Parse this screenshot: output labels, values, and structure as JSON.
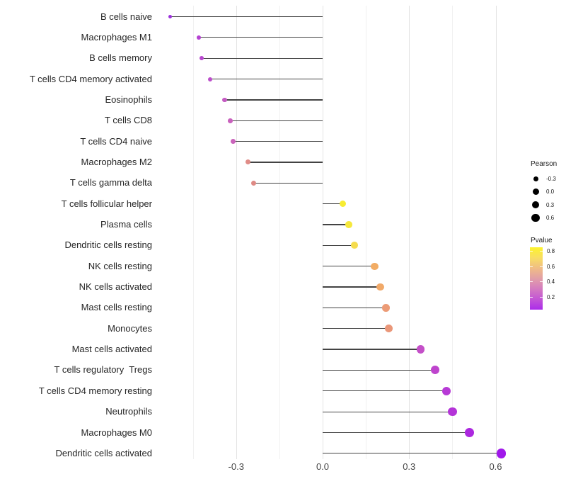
{
  "figure": {
    "background": "#ffffff",
    "stem_color": "#434343",
    "grid_major_color": "#e3e3e3",
    "grid_minor_color": "#f1f1f1"
  },
  "chart_data": {
    "type": "scatter",
    "variant": "horizontal-lollipop",
    "title": "",
    "xlabel": "",
    "ylabel": "",
    "baseline": 0.0,
    "x_axis": {
      "ticks": [
        -0.3,
        0.0,
        0.3,
        0.6
      ],
      "tick_labels": [
        "-0.3",
        "0.0",
        "0.3",
        "0.6"
      ],
      "minor_ticks": [
        -0.45,
        -0.15,
        0.15,
        0.45
      ],
      "range": [
        -0.575,
        0.655
      ],
      "grid": true
    },
    "points": [
      {
        "label": "B cells naive",
        "pearson": -0.53,
        "color": "#9b30db"
      },
      {
        "label": "Macrophages M1",
        "pearson": -0.43,
        "color": "#b542d2"
      },
      {
        "label": "B cells memory",
        "pearson": -0.42,
        "color": "#b847cf"
      },
      {
        "label": "T cells CD4 memory activated",
        "pearson": -0.39,
        "color": "#bc4ecb"
      },
      {
        "label": "Eosinophils",
        "pearson": -0.34,
        "color": "#c45bc2"
      },
      {
        "label": "T cells CD8",
        "pearson": -0.32,
        "color": "#c961bd"
      },
      {
        "label": "T cells CD4 naive",
        "pearson": -0.31,
        "color": "#ca64bc"
      },
      {
        "label": "Macrophages M2",
        "pearson": -0.26,
        "color": "#e08c87"
      },
      {
        "label": "T cells gamma delta",
        "pearson": -0.24,
        "color": "#de8a85"
      },
      {
        "label": "T cells follicular helper",
        "pearson": 0.07,
        "color": "#f7ec32"
      },
      {
        "label": "Plasma cells",
        "pearson": 0.09,
        "color": "#f6e83c"
      },
      {
        "label": "Dendritic cells resting",
        "pearson": 0.11,
        "color": "#f5dc4e"
      },
      {
        "label": "NK cells resting",
        "pearson": 0.18,
        "color": "#f2ac64"
      },
      {
        "label": "NK cells activated",
        "pearson": 0.2,
        "color": "#f1a969"
      },
      {
        "label": "Mast cells resting",
        "pearson": 0.22,
        "color": "#ec9b76"
      },
      {
        "label": "Monocytes",
        "pearson": 0.23,
        "color": "#ea9779"
      },
      {
        "label": "Mast cells activated",
        "pearson": 0.34,
        "color": "#c44fc8"
      },
      {
        "label": "T cells regulatory  Tregs",
        "pearson": 0.39,
        "color": "#be44cd"
      },
      {
        "label": "T cells CD4 memory resting",
        "pearson": 0.43,
        "color": "#b73ad6"
      },
      {
        "label": "Neutrophils",
        "pearson": 0.45,
        "color": "#b434d8"
      },
      {
        "label": "Macrophages M0",
        "pearson": 0.51,
        "color": "#ac28df"
      },
      {
        "label": "Dendritic cells activated",
        "pearson": 0.62,
        "color": "#a018ea"
      }
    ],
    "legend": {
      "position": "right",
      "size_legend": {
        "title": "Pearson",
        "dot_color": "#000000",
        "items": [
          {
            "label": "-0.3",
            "diameter": 7
          },
          {
            "label": "0.0",
            "diameter": 9
          },
          {
            "label": "0.3",
            "diameter": 10.5
          },
          {
            "label": "0.6",
            "diameter": 11.5
          }
        ]
      },
      "color_legend": {
        "title": "Pvalue",
        "tick_labels": [
          "0.8",
          "0.6",
          "0.4",
          "0.2"
        ],
        "gradient_top_to_bottom": [
          "#fdf32b",
          "#f8de63",
          "#f0bd85",
          "#e29fa7",
          "#d47bc0",
          "#c355d5",
          "#ab2cea"
        ]
      }
    }
  }
}
